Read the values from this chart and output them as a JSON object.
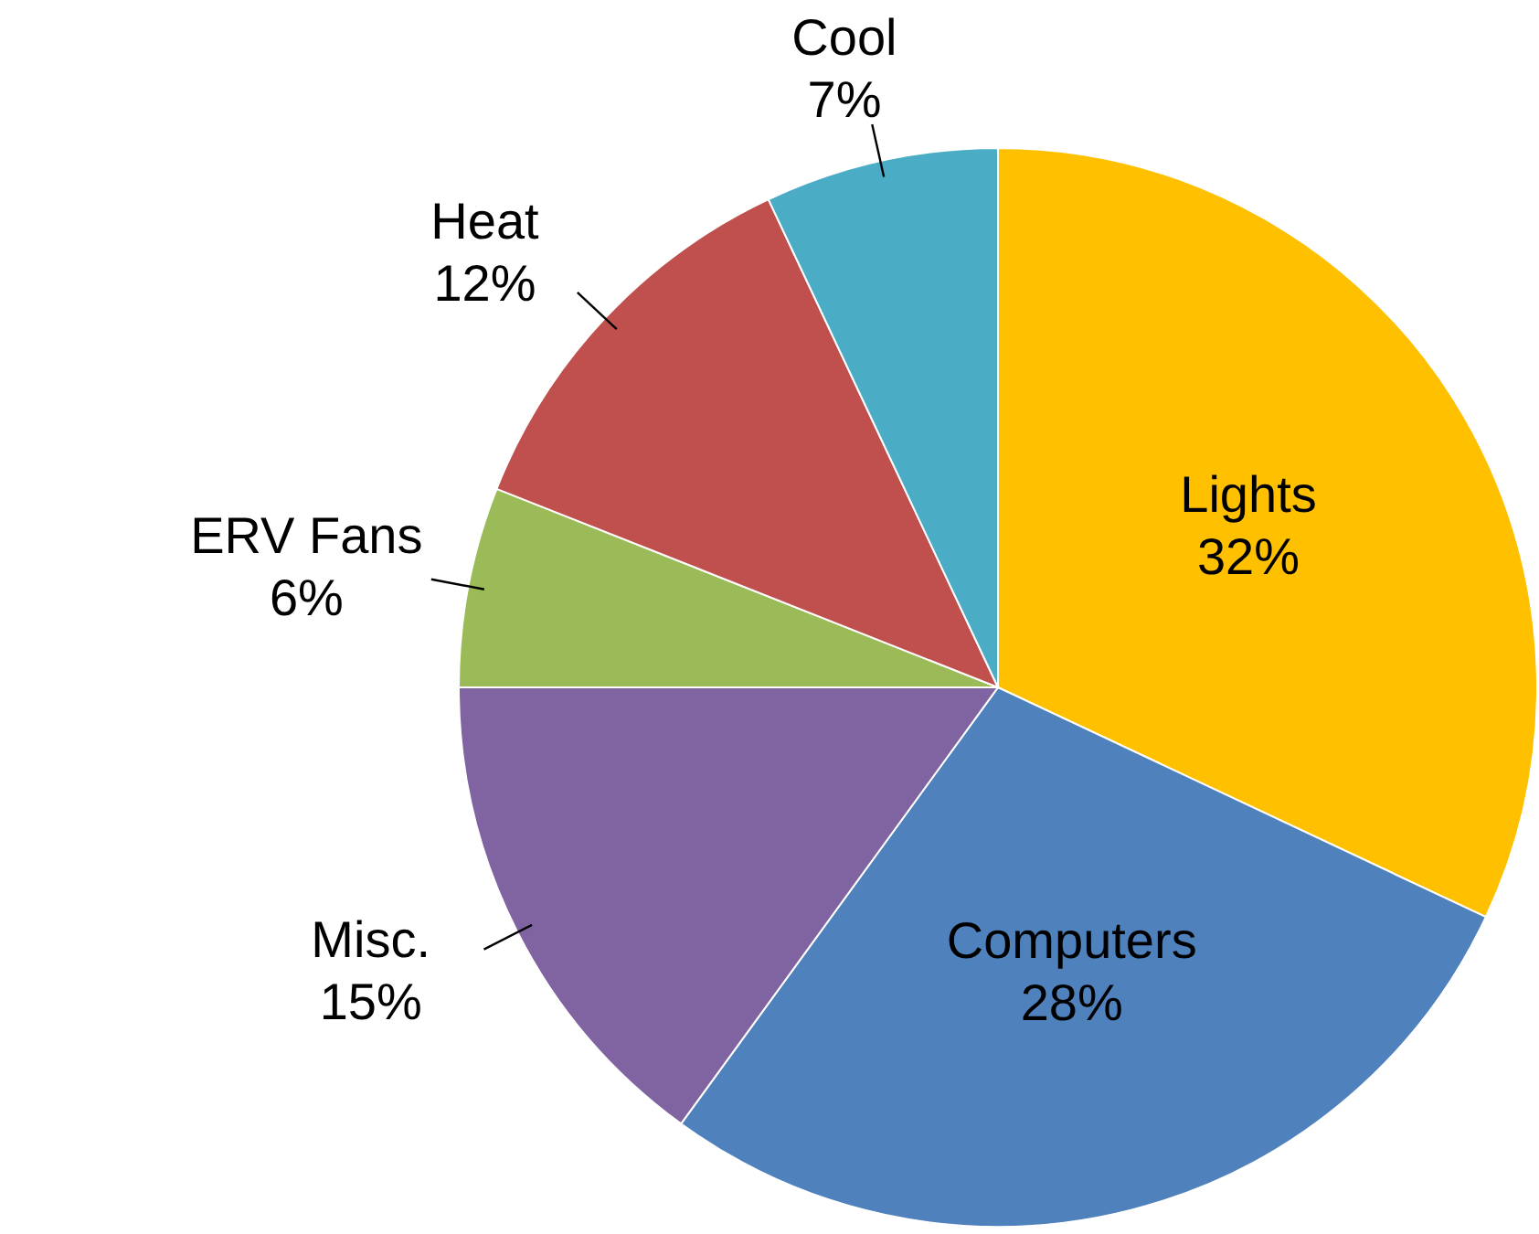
{
  "chart_data": {
    "type": "pie",
    "categories": [
      "Lights",
      "Computers",
      "Misc.",
      "ERV Fans",
      "Heat",
      "Cool"
    ],
    "values": [
      32,
      28,
      15,
      6,
      12,
      7
    ],
    "colors": [
      "#ffc000",
      "#4f81bd",
      "#8064a2",
      "#9bbb59",
      "#c0504d",
      "#4bacc6"
    ],
    "value_labels": [
      "32%",
      "28%",
      "15%",
      "6%",
      "12%",
      "7%"
    ]
  }
}
